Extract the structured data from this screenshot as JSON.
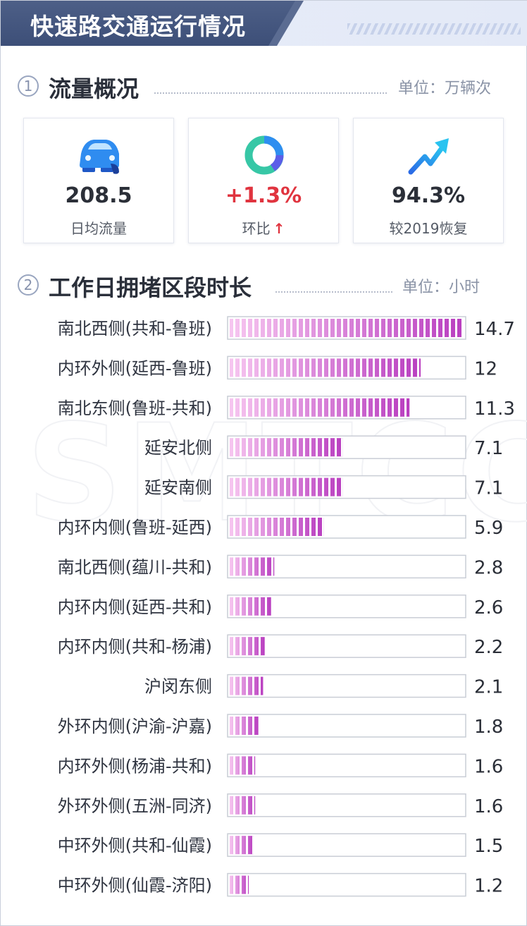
{
  "header": {
    "title": "快速路交通运行情况"
  },
  "section1": {
    "num": "1",
    "title": "流量概况",
    "unit": "单位：万辆次"
  },
  "cards": [
    {
      "icon": "car-icon",
      "value": "208.5",
      "label": "日均流量"
    },
    {
      "icon": "donut-icon",
      "value": "+1.3%",
      "label": "环比",
      "trend": "up",
      "trend_color": "#e0343f"
    },
    {
      "icon": "trend-up-arrow-icon",
      "value": "94.3%",
      "label": "较2019恢复"
    }
  ],
  "section2": {
    "num": "2",
    "title": "工作日拥堵区段时长",
    "unit": "单位：小时"
  },
  "watermark": "SMTCC",
  "chart_data": {
    "type": "bar",
    "orientation": "horizontal",
    "categories": [
      "南北西侧(共和-鲁班)",
      "内环外侧(延西-鲁班)",
      "南北东侧(鲁班-共和)",
      "延安北侧",
      "延安南侧",
      "内环内侧(鲁班-延西)",
      "南北西侧(蕴川-共和)",
      "内环内侧(延西-共和)",
      "内环内侧(共和-杨浦)",
      "沪闵东侧",
      "外环内侧(沪渝-沪嘉)",
      "内环外侧(杨浦-共和)",
      "外环外侧(五洲-同济)",
      "中环外侧(共和-仙霞)",
      "中环外侧(仙霞-济阳)"
    ],
    "values": [
      14.7,
      12,
      11.3,
      7.1,
      7.1,
      5.9,
      2.8,
      2.6,
      2.2,
      2.1,
      1.8,
      1.6,
      1.6,
      1.5,
      1.2
    ],
    "value_labels": [
      "14.7",
      "12",
      "11.3",
      "7.1",
      "7.1",
      "5.9",
      "2.8",
      "2.6",
      "2.2",
      "2.1",
      "1.8",
      "1.6",
      "1.6",
      "1.5",
      "1.2"
    ],
    "xlim": [
      0,
      14.7
    ],
    "unit": "小时",
    "bar_colors": [
      "#f7c6f0",
      "#b93ec0"
    ]
  }
}
